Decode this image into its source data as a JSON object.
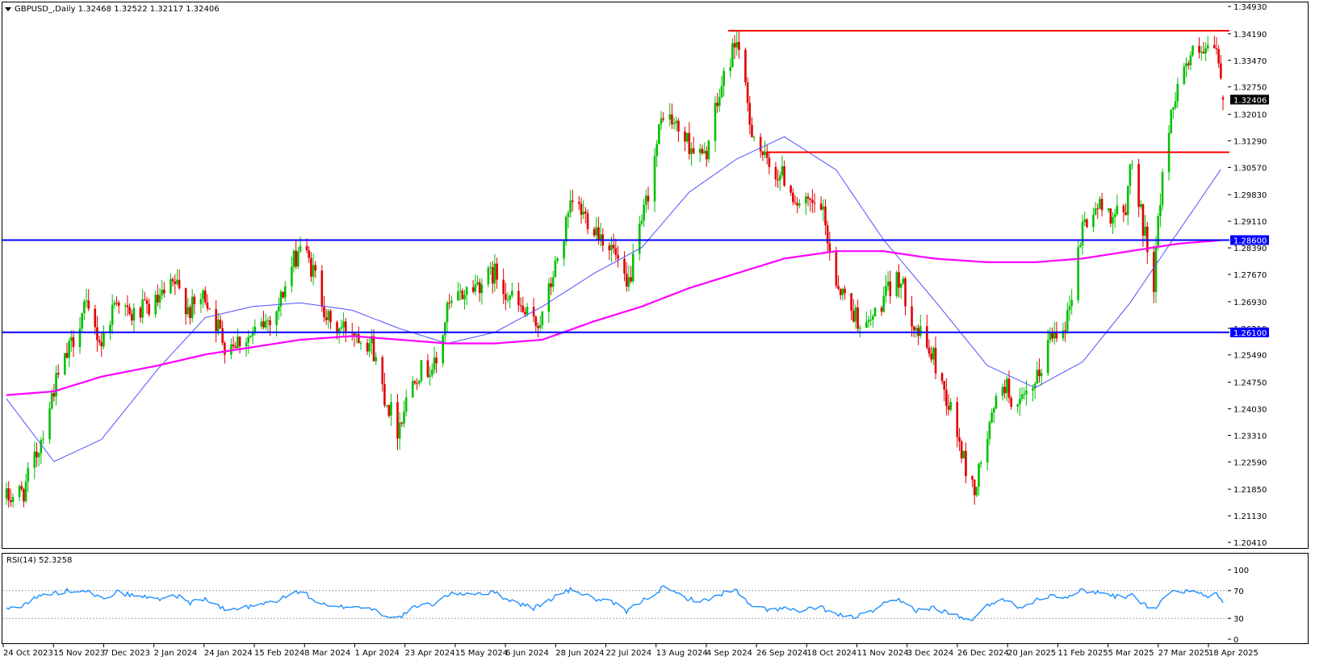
{
  "header": {
    "symbol_line": "GBPUSD_,Daily  1.32468 1.32522 1.32117 1.32406",
    "rsi_label": "RSI(14) 52.3258"
  },
  "colors": {
    "background": "#ffffff",
    "bull": "#00c000",
    "bear": "#e00000",
    "ma_fast": "#5050ff",
    "ma_slow": "#ff00ff",
    "resistance": "#ff0000",
    "support": "#0000ff",
    "rsi": "#1e90ff",
    "price_tag_bg": "#000000",
    "support_tag_bg": "#0000ff"
  },
  "chart_data": {
    "type": "candlestick",
    "symbol": "GBPUSD_",
    "timeframe": "Daily",
    "last_ohlc": {
      "open": 1.32468,
      "high": 1.32522,
      "low": 1.32117,
      "close": 1.32406
    },
    "ylim": [
      1.2041,
      1.3493
    ],
    "price_ticks": [
      "1.34930",
      "1.34190",
      "1.33470",
      "1.32750",
      "1.32010",
      "1.31290",
      "1.30570",
      "1.29830",
      "1.29110",
      "1.28390",
      "1.27670",
      "1.26930",
      "1.26210",
      "1.25490",
      "1.24750",
      "1.24030",
      "1.23310",
      "1.22590",
      "1.21850",
      "1.21130",
      "1.20410"
    ],
    "current_price_label": "1.32406",
    "date_ticks": [
      "24 Oct 2023",
      "15 Nov 2023",
      "7 Dec 2023",
      "2 Jan 2024",
      "24 Jan 2024",
      "15 Feb 2024",
      "8 Mar 2024",
      "1 Apr 2024",
      "23 Apr 2024",
      "15 May 2024",
      "6 Jun 2024",
      "28 Jun 2024",
      "22 Jul 2024",
      "13 Aug 2024",
      "4 Sep 2024",
      "26 Sep 2024",
      "18 Oct 2024",
      "11 Nov 2024",
      "3 Dec 2024",
      "26 Dec 2024",
      "20 Jan 2025",
      "11 Feb 2025",
      "5 Mar 2025",
      "27 Mar 2025",
      "18 Apr 2025"
    ],
    "close_anchors": [
      [
        "24 Oct 2023",
        1.216
      ],
      [
        "1 Nov 2023",
        1.218
      ],
      [
        "8 Nov 2023",
        1.23
      ],
      [
        "15 Nov 2023",
        1.246
      ],
      [
        "22 Nov 2023",
        1.256
      ],
      [
        "29 Nov 2023",
        1.268
      ],
      [
        "7 Dec 2023",
        1.258
      ],
      [
        "14 Dec 2023",
        1.271
      ],
      [
        "20 Dec 2023",
        1.265
      ],
      [
        "2 Jan 2024",
        1.269
      ],
      [
        "10 Jan 2024",
        1.274
      ],
      [
        "17 Jan 2024",
        1.267
      ],
      [
        "24 Jan 2024",
        1.271
      ],
      [
        "2 Feb 2024",
        1.258
      ],
      [
        "15 Feb 2024",
        1.26
      ],
      [
        "26 Feb 2024",
        1.267
      ],
      [
        "8 Mar 2024",
        1.285
      ],
      [
        "15 Mar 2024",
        1.276
      ],
      [
        "22 Mar 2024",
        1.262
      ],
      [
        "1 Apr 2024",
        1.262
      ],
      [
        "10 Apr 2024",
        1.258
      ],
      [
        "16 Apr 2024",
        1.244
      ],
      [
        "22 Apr 2024",
        1.235
      ],
      [
        "30 Apr 2024",
        1.25
      ],
      [
        "10 May 2024",
        1.252
      ],
      [
        "15 May 2024",
        1.267
      ],
      [
        "23 May 2024",
        1.272
      ],
      [
        "6 Jun 2024",
        1.277
      ],
      [
        "14 Jun 2024",
        1.27
      ],
      [
        "24 Jun 2024",
        1.263
      ],
      [
        "28 Jun 2024",
        1.265
      ],
      [
        "5 Jul 2024",
        1.281
      ],
      [
        "12 Jul 2024",
        1.296
      ],
      [
        "22 Jul 2024",
        1.29
      ],
      [
        "31 Jul 2024",
        1.283
      ],
      [
        "6 Aug 2024",
        1.272
      ],
      [
        "13 Aug 2024",
        1.29
      ],
      [
        "23 Aug 2024",
        1.321
      ],
      [
        "4 Sep 2024",
        1.312
      ],
      [
        "11 Sep 2024",
        1.308
      ],
      [
        "20 Sep 2024",
        1.33
      ],
      [
        "26 Sep 2024",
        1.341
      ],
      [
        "2 Oct 2024",
        1.318
      ],
      [
        "10 Oct 2024",
        1.306
      ],
      [
        "18 Oct 2024",
        1.303
      ],
      [
        "25 Oct 2024",
        1.295
      ],
      [
        "4 Nov 2024",
        1.295
      ],
      [
        "11 Nov 2024",
        1.275
      ],
      [
        "18 Nov 2024",
        1.267
      ],
      [
        "25 Nov 2024",
        1.262
      ],
      [
        "3 Dec 2024",
        1.27
      ],
      [
        "10 Dec 2024",
        1.276
      ],
      [
        "18 Dec 2024",
        1.262
      ],
      [
        "26 Dec 2024",
        1.254
      ],
      [
        "3 Jan 2025",
        1.24
      ],
      [
        "10 Jan 2025",
        1.224
      ],
      [
        "14 Jan 2025",
        1.218
      ],
      [
        "20 Jan 2025",
        1.233
      ],
      [
        "27 Jan 2025",
        1.248
      ],
      [
        "3 Feb 2025",
        1.24
      ],
      [
        "11 Feb 2025",
        1.246
      ],
      [
        "18 Feb 2025",
        1.26
      ],
      [
        "26 Feb 2025",
        1.265
      ],
      [
        "5 Mar 2025",
        1.29
      ],
      [
        "12 Mar 2025",
        1.295
      ],
      [
        "20 Mar 2025",
        1.293
      ],
      [
        "25 Mar 2025",
        1.292
      ],
      [
        "27 Mar 2025",
        1.309
      ],
      [
        "31 Mar 2025",
        1.296
      ],
      [
        "7 Apr 2025",
        1.275
      ],
      [
        "11 Apr 2025",
        1.305
      ],
      [
        "18 Apr 2025",
        1.33
      ],
      [
        "25 Apr 2025",
        1.336
      ],
      [
        "1 May 2025",
        1.336
      ],
      [
        "6 May 2025",
        1.338
      ],
      [
        "9 May 2025",
        1.324
      ]
    ],
    "horizontal_lines": [
      {
        "type": "resistance",
        "price": 1.3427,
        "from": "22 Sep 2024"
      },
      {
        "type": "resistance",
        "price": 1.3098,
        "from": "10 Oct 2024"
      },
      {
        "type": "support",
        "price": 1.286,
        "label": "1.28600"
      },
      {
        "type": "support",
        "price": 1.261,
        "label": "1.26100"
      }
    ],
    "moving_averages": [
      {
        "color": "blue",
        "points": [
          [
            "24 Oct 2023",
            1.243
          ],
          [
            "15 Nov 2023",
            1.226
          ],
          [
            "7 Dec 2023",
            1.232
          ],
          [
            "2 Jan 2024",
            1.251
          ],
          [
            "24 Jan 2024",
            1.265
          ],
          [
            "15 Feb 2024",
            1.268
          ],
          [
            "8 Mar 2024",
            1.269
          ],
          [
            "1 Apr 2024",
            1.267
          ],
          [
            "23 Apr 2024",
            1.262
          ],
          [
            "15 May 2024",
            1.258
          ],
          [
            "6 Jun 2024",
            1.261
          ],
          [
            "28 Jun 2024",
            1.268
          ],
          [
            "22 Jul 2024",
            1.277
          ],
          [
            "13 Aug 2024",
            1.284
          ],
          [
            "4 Sep 2024",
            1.299
          ],
          [
            "26 Sep 2024",
            1.308
          ],
          [
            "18 Oct 2024",
            1.314
          ],
          [
            "11 Nov 2024",
            1.305
          ],
          [
            "3 Dec 2024",
            1.286
          ],
          [
            "26 Dec 2024",
            1.27
          ],
          [
            "20 Jan 2025",
            1.252
          ],
          [
            "11 Feb 2025",
            1.246
          ],
          [
            "5 Mar 2025",
            1.253
          ],
          [
            "27 Mar 2025",
            1.269
          ],
          [
            "18 Apr 2025",
            1.288
          ],
          [
            "9 May 2025",
            1.306
          ]
        ]
      },
      {
        "color": "magenta",
        "points": [
          [
            "24 Oct 2023",
            1.244
          ],
          [
            "15 Nov 2023",
            1.245
          ],
          [
            "7 Dec 2023",
            1.249
          ],
          [
            "2 Jan 2024",
            1.252
          ],
          [
            "24 Jan 2024",
            1.255
          ],
          [
            "15 Feb 2024",
            1.257
          ],
          [
            "8 Mar 2024",
            1.259
          ],
          [
            "1 Apr 2024",
            1.26
          ],
          [
            "23 Apr 2024",
            1.259
          ],
          [
            "15 May 2024",
            1.258
          ],
          [
            "6 Jun 2024",
            1.258
          ],
          [
            "28 Jun 2024",
            1.259
          ],
          [
            "22 Jul 2024",
            1.264
          ],
          [
            "13 Aug 2024",
            1.268
          ],
          [
            "4 Sep 2024",
            1.273
          ],
          [
            "26 Sep 2024",
            1.277
          ],
          [
            "18 Oct 2024",
            1.281
          ],
          [
            "11 Nov 2024",
            1.283
          ],
          [
            "3 Dec 2024",
            1.283
          ],
          [
            "26 Dec 2024",
            1.281
          ],
          [
            "20 Jan 2025",
            1.28
          ],
          [
            "11 Feb 2025",
            1.28
          ],
          [
            "5 Mar 2025",
            1.281
          ],
          [
            "27 Mar 2025",
            1.283
          ],
          [
            "18 Apr 2025",
            1.285
          ],
          [
            "9 May 2025",
            1.286
          ]
        ]
      }
    ],
    "rsi": {
      "period": 14,
      "last": 52.3258,
      "levels": [
        70,
        30
      ],
      "scale_ticks": [
        "100",
        "70",
        "30",
        "0"
      ],
      "anchors": [
        [
          "24 Oct 2023",
          43
        ],
        [
          "1 Nov 2023",
          50
        ],
        [
          "8 Nov 2023",
          62
        ],
        [
          "15 Nov 2023",
          66
        ],
        [
          "22 Nov 2023",
          70
        ],
        [
          "29 Nov 2023",
          72
        ],
        [
          "7 Dec 2023",
          58
        ],
        [
          "14 Dec 2023",
          68
        ],
        [
          "20 Dec 2023",
          64
        ],
        [
          "2 Jan 2024",
          58
        ],
        [
          "10 Jan 2024",
          64
        ],
        [
          "17 Jan 2024",
          53
        ],
        [
          "24 Jan 2024",
          58
        ],
        [
          "2 Feb 2024",
          42
        ],
        [
          "15 Feb 2024",
          47
        ],
        [
          "26 Feb 2024",
          56
        ],
        [
          "8 Mar 2024",
          70
        ],
        [
          "15 Mar 2024",
          55
        ],
        [
          "22 Mar 2024",
          45
        ],
        [
          "1 Apr 2024",
          48
        ],
        [
          "10 Apr 2024",
          44
        ],
        [
          "16 Apr 2024",
          35
        ],
        [
          "22 Apr 2024",
          30
        ],
        [
          "30 Apr 2024",
          46
        ],
        [
          "10 May 2024",
          52
        ],
        [
          "15 May 2024",
          64
        ],
        [
          "23 May 2024",
          66
        ],
        [
          "6 Jun 2024",
          67
        ],
        [
          "14 Jun 2024",
          55
        ],
        [
          "24 Jun 2024",
          45
        ],
        [
          "28 Jun 2024",
          50
        ],
        [
          "5 Jul 2024",
          64
        ],
        [
          "12 Jul 2024",
          72
        ],
        [
          "22 Jul 2024",
          58
        ],
        [
          "31 Jul 2024",
          52
        ],
        [
          "6 Aug 2024",
          40
        ],
        [
          "13 Aug 2024",
          55
        ],
        [
          "23 Aug 2024",
          74
        ],
        [
          "4 Sep 2024",
          58
        ],
        [
          "11 Sep 2024",
          55
        ],
        [
          "20 Sep 2024",
          67
        ],
        [
          "26 Sep 2024",
          70
        ],
        [
          "2 Oct 2024",
          48
        ],
        [
          "10 Oct 2024",
          43
        ],
        [
          "18 Oct 2024",
          44
        ],
        [
          "25 Oct 2024",
          40
        ],
        [
          "4 Nov 2024",
          46
        ],
        [
          "11 Nov 2024",
          35
        ],
        [
          "18 Nov 2024",
          32
        ],
        [
          "25 Nov 2024",
          36
        ],
        [
          "3 Dec 2024",
          50
        ],
        [
          "10 Dec 2024",
          56
        ],
        [
          "18 Dec 2024",
          42
        ],
        [
          "26 Dec 2024",
          45
        ],
        [
          "3 Jan 2025",
          37
        ],
        [
          "10 Jan 2025",
          28
        ],
        [
          "14 Jan 2025",
          30
        ],
        [
          "20 Jan 2025",
          48
        ],
        [
          "27 Jan 2025",
          60
        ],
        [
          "3 Feb 2025",
          45
        ],
        [
          "11 Feb 2025",
          56
        ],
        [
          "18 Feb 2025",
          64
        ],
        [
          "26 Feb 2025",
          62
        ],
        [
          "5 Mar 2025",
          70
        ],
        [
          "12 Mar 2025",
          68
        ],
        [
          "20 Mar 2025",
          62
        ],
        [
          "25 Mar 2025",
          62
        ],
        [
          "27 Mar 2025",
          66
        ],
        [
          "31 Mar 2025",
          56
        ],
        [
          "7 Apr 2025",
          42
        ],
        [
          "11 Apr 2025",
          60
        ],
        [
          "18 Apr 2025",
          70
        ],
        [
          "25 Apr 2025",
          68
        ],
        [
          "1 May 2025",
          62
        ],
        [
          "6 May 2025",
          64
        ],
        [
          "9 May 2025",
          52
        ]
      ]
    }
  }
}
